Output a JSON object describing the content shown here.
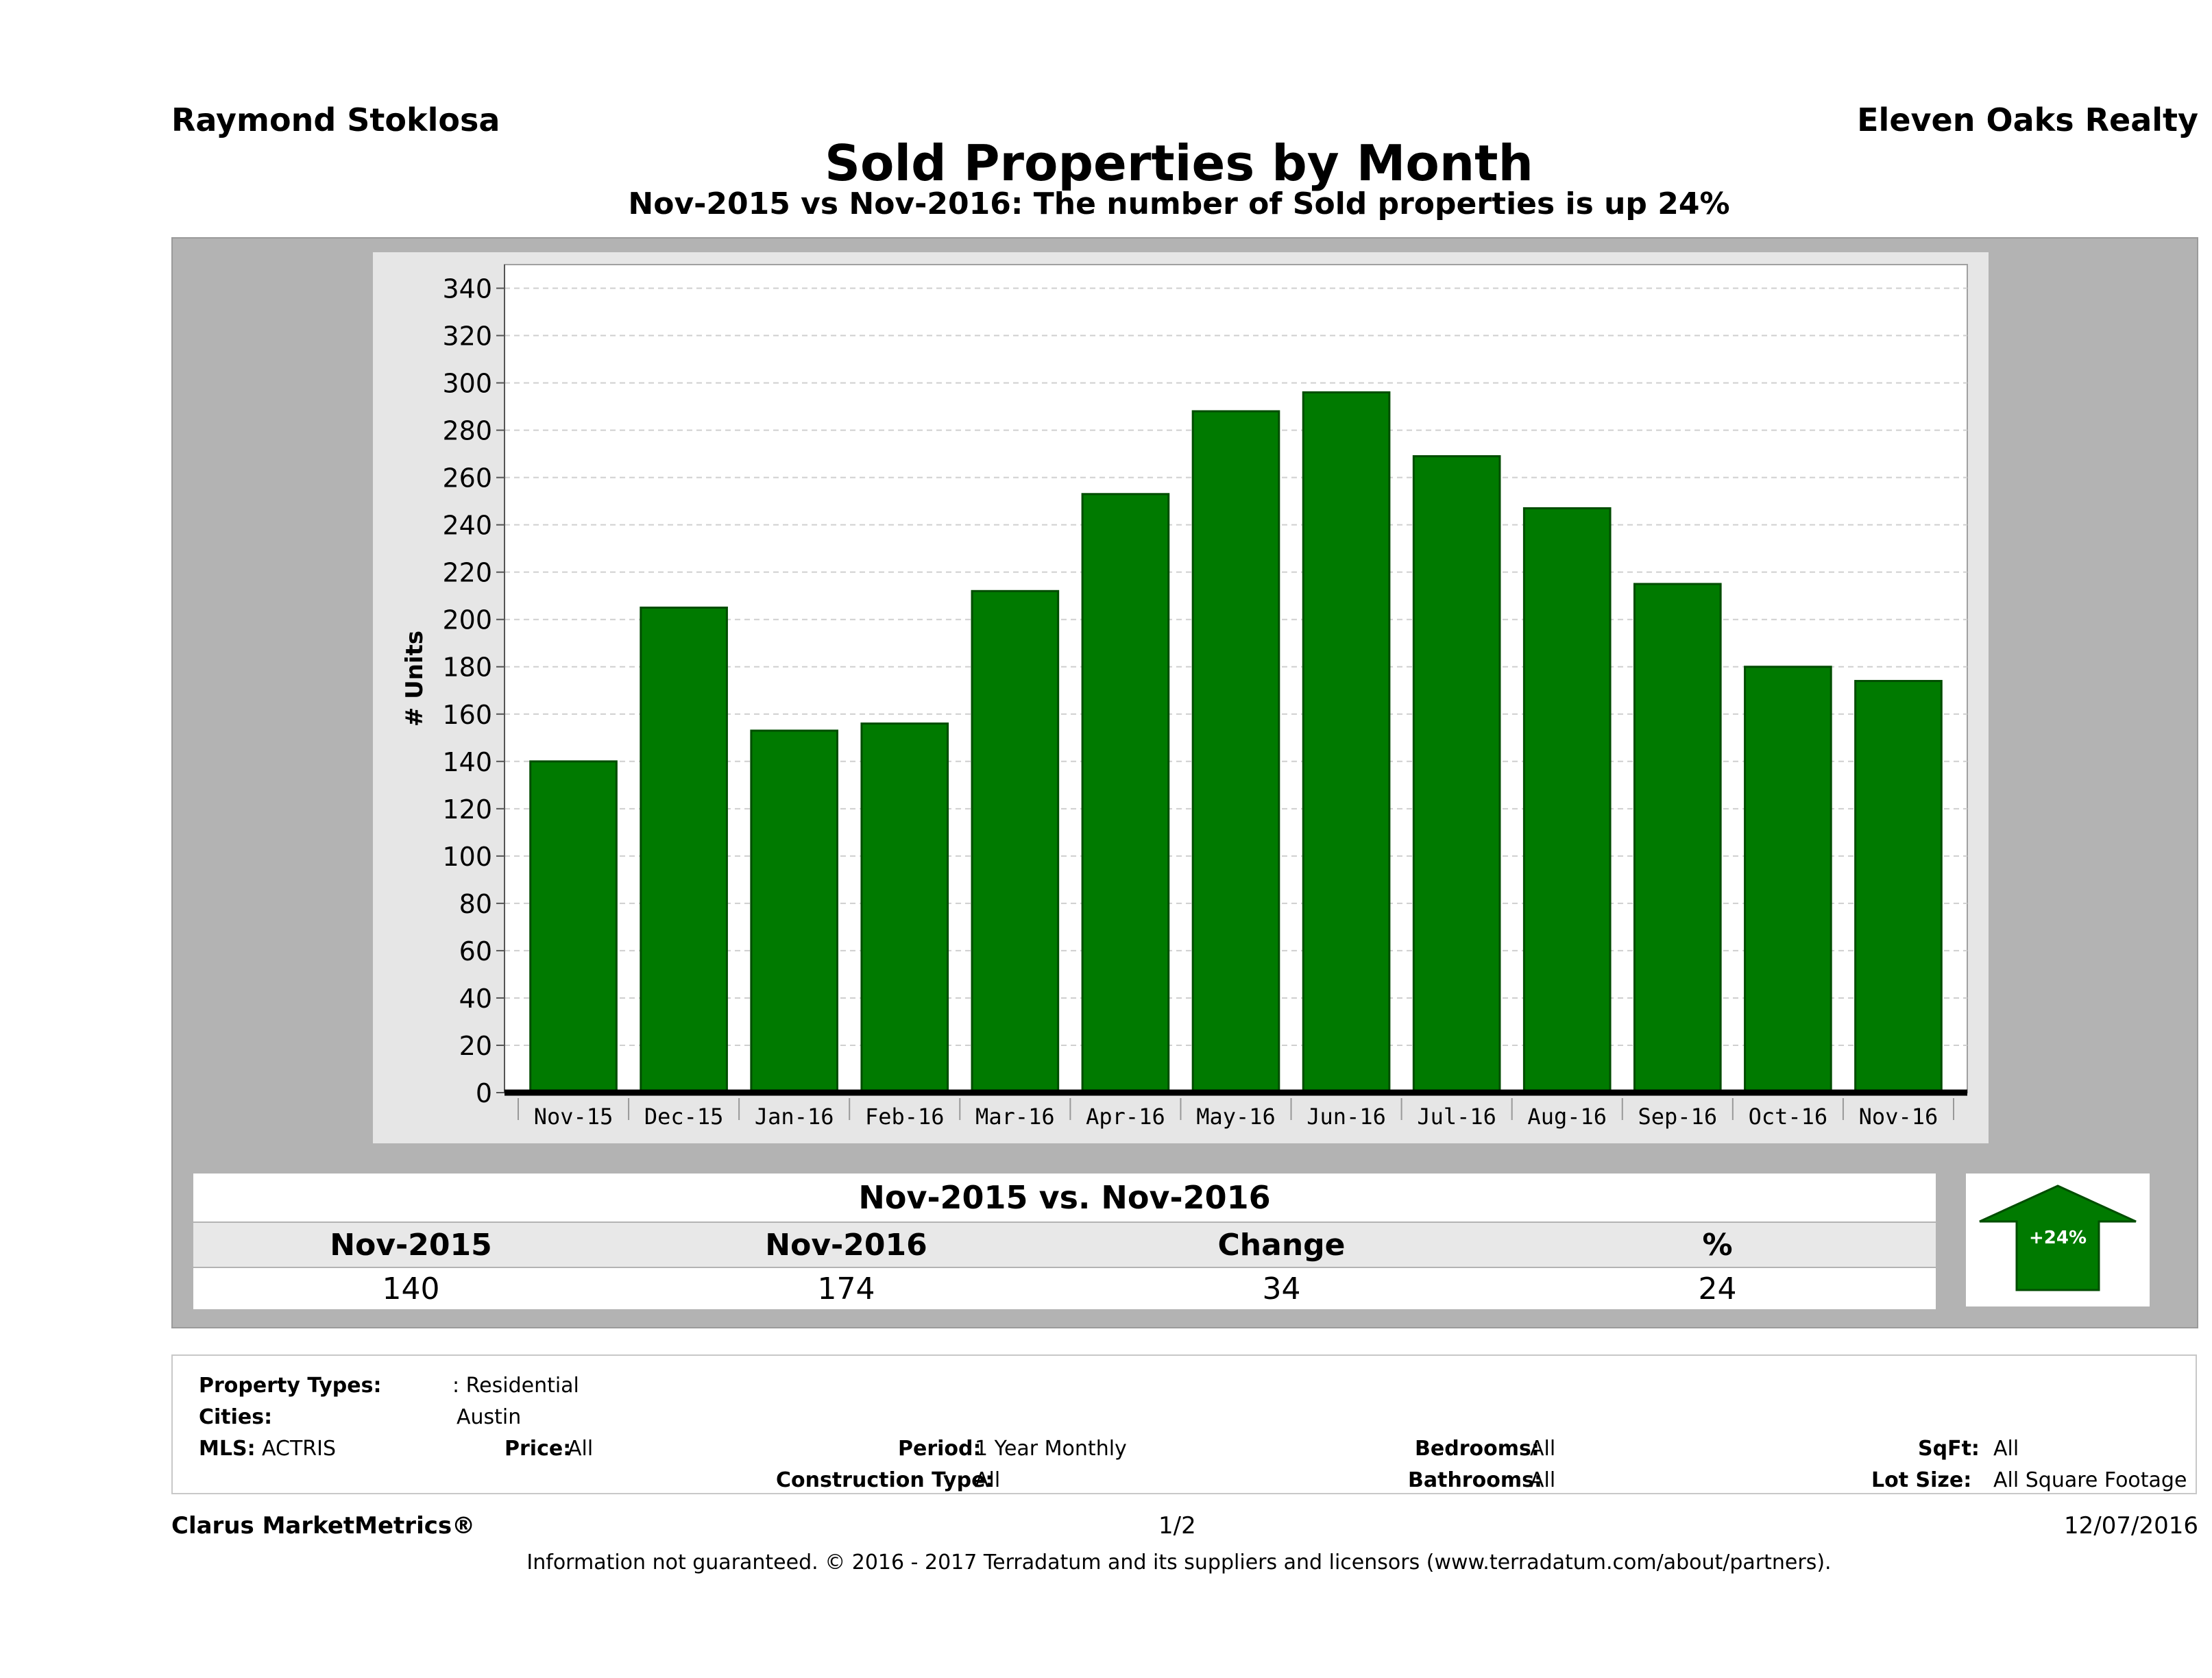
{
  "header": {
    "agent": "Raymond Stoklosa",
    "company": "Eleven Oaks Realty",
    "title": "Sold Properties by Month",
    "subtitle": "Nov-2015 vs Nov-2016: The number of Sold  properties is up 24%"
  },
  "chart_data": {
    "type": "bar",
    "categories": [
      "Nov-15",
      "Dec-15",
      "Jan-16",
      "Feb-16",
      "Mar-16",
      "Apr-16",
      "May-16",
      "Jun-16",
      "Jul-16",
      "Aug-16",
      "Sep-16",
      "Oct-16",
      "Nov-16"
    ],
    "values": [
      140,
      205,
      153,
      156,
      212,
      253,
      288,
      296,
      269,
      247,
      215,
      180,
      174
    ],
    "ylabel": "# Units",
    "xlabel": "",
    "ylim": [
      0,
      350
    ],
    "yticks": [
      0,
      20,
      40,
      60,
      80,
      100,
      120,
      140,
      160,
      180,
      200,
      220,
      240,
      260,
      280,
      300,
      320,
      340
    ],
    "grid": true,
    "colors": {
      "bar": "#007a00",
      "bar_edge": "#004d00"
    }
  },
  "summary": {
    "heading": "Nov-2015 vs. Nov-2016",
    "columns": [
      "Nov-2015",
      "Nov-2016",
      "Change",
      "%"
    ],
    "values": [
      "140",
      "174",
      "34",
      "24"
    ],
    "badge": "+24%",
    "badge_color": "#007a00"
  },
  "filters": {
    "property_types_label": "Property Types:",
    "property_types_value": ": Residential",
    "cities_label": "Cities:",
    "cities_value": "Austin",
    "mls_label": "MLS:",
    "mls_value": "ACTRIS",
    "price_label": "Price:",
    "price_value": "All",
    "period_label": "Period:",
    "period_value": "1 Year Monthly",
    "construction_label": "Construction Type:",
    "construction_value": "All",
    "bedrooms_label": "Bedrooms:",
    "bedrooms_value": "All",
    "bathrooms_label": "Bathrooms:",
    "bathrooms_value": "All",
    "sqft_label": "SqFt:",
    "sqft_value": "All",
    "lotsize_label": "Lot Size:",
    "lotsize_value": "All Square Footage"
  },
  "footer": {
    "brand": "Clarus MarketMetrics®",
    "page": "1/2",
    "date": "12/07/2016",
    "disclaimer": "Information not guaranteed. © 2016 - 2017 Terradatum and its suppliers and licensors (www.terradatum.com/about/partners)."
  }
}
